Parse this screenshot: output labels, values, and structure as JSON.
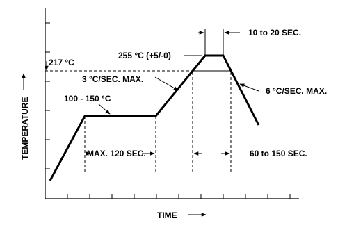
{
  "diagram": {
    "y_axis_label": "TEMPERATURE",
    "x_axis_label": "TIME",
    "labels": {
      "peak_temp": "255 °C (+5/-0)",
      "liquidus_temp": "217 °C",
      "preheat_temp": "100 - 150 °C",
      "ramp_up_rate": "3 °C/SEC. MAX.",
      "ramp_down_rate": "6 °C/SEC. MAX.",
      "preheat_time": "MAX. 120 SEC.",
      "time_above_liquidus": "60 to 150 SEC.",
      "time_at_peak": "10 to 20 SEC."
    }
  }
}
